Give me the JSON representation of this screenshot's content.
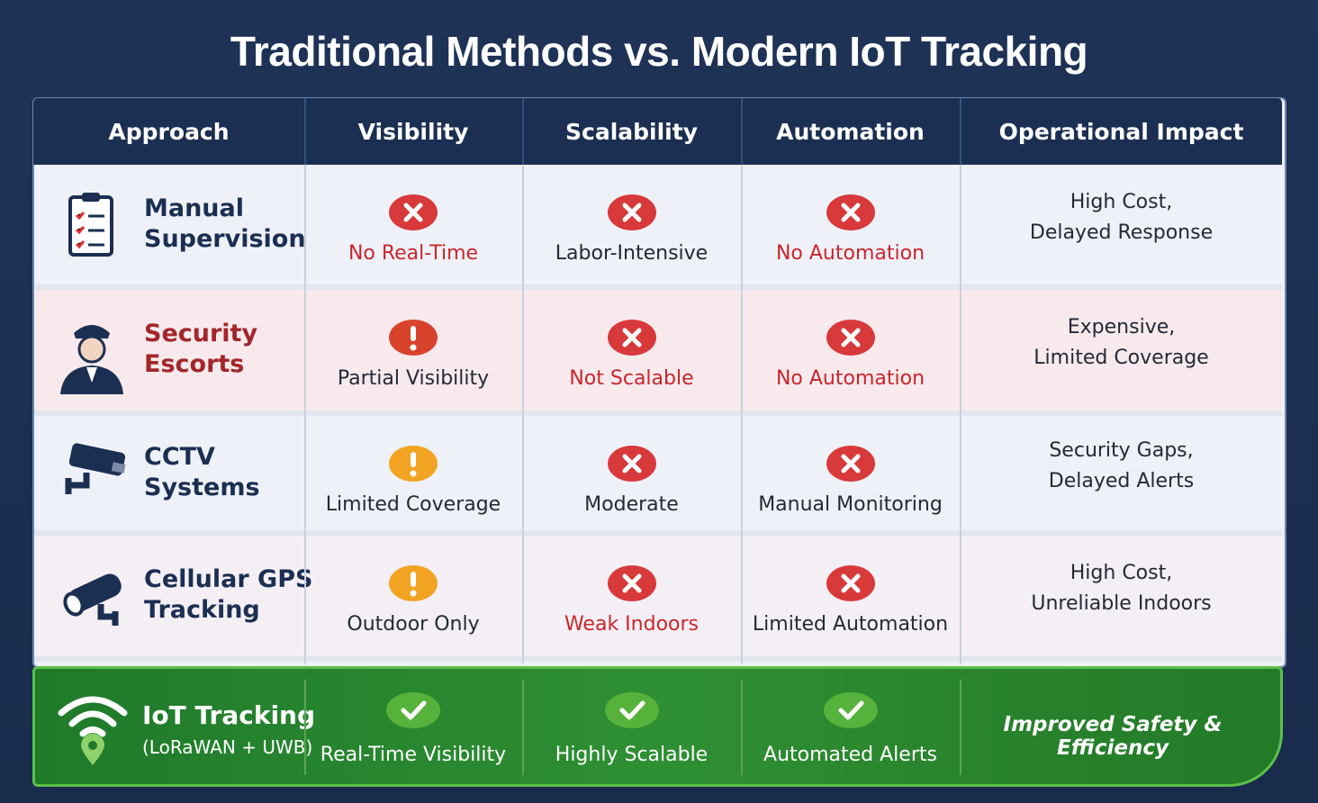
{
  "title": "Traditional Methods vs. Modern IoT Tracking",
  "table": {
    "headers": [
      "Approach",
      "Visibility",
      "Scalability",
      "Automation",
      "Operational Impact"
    ],
    "rows": [
      {
        "approach": [
          "Manual",
          "Supervision"
        ],
        "tone": "dark",
        "cells": [
          {
            "icon": "cross",
            "text": "No Real-Time",
            "tone": "red"
          },
          {
            "icon": "cross",
            "text": "Labor-Intensive",
            "tone": "dark"
          },
          {
            "icon": "cross",
            "text": "No Automation",
            "tone": "red"
          }
        ],
        "impact": [
          "High Cost,",
          "Delayed Response"
        ]
      },
      {
        "approach": [
          "Security",
          "Escorts"
        ],
        "tone": "red",
        "cells": [
          {
            "icon": "warn-red",
            "text": "Partial Visibility",
            "tone": "dark"
          },
          {
            "icon": "cross",
            "text": "Not Scalable",
            "tone": "red"
          },
          {
            "icon": "cross",
            "text": "No Automation",
            "tone": "red"
          }
        ],
        "impact": [
          "Expensive,",
          "Limited Coverage"
        ]
      },
      {
        "approach": [
          "CCTV",
          "Systems"
        ],
        "tone": "dark",
        "cells": [
          {
            "icon": "warn-orange",
            "text": "Limited Coverage",
            "tone": "dark"
          },
          {
            "icon": "cross",
            "text": "Moderate",
            "tone": "dark"
          },
          {
            "icon": "cross",
            "text": "Manual Monitoring",
            "tone": "dark"
          }
        ],
        "impact": [
          "Security Gaps,",
          "Delayed Alerts"
        ]
      },
      {
        "approach": [
          "Cellular GPS",
          "Tracking"
        ],
        "tone": "dark",
        "cells": [
          {
            "icon": "warn-orange",
            "text": "Outdoor Only",
            "tone": "dark"
          },
          {
            "icon": "cross",
            "text": "Weak Indoors",
            "tone": "red"
          },
          {
            "icon": "cross",
            "text": "Limited Automation",
            "tone": "dark"
          }
        ],
        "impact": [
          "High Cost,",
          "Unreliable Indoors"
        ]
      }
    ],
    "highlight": {
      "approach": "IoT Tracking",
      "detail": "(LoRaWAN + UWB)",
      "cells": [
        {
          "icon": "check",
          "text": "Real-Time Visibility"
        },
        {
          "icon": "check",
          "text": "Highly Scalable"
        },
        {
          "icon": "check",
          "text": "Automated Alerts"
        }
      ],
      "impact": "Improved Safety & Efficiency"
    }
  }
}
